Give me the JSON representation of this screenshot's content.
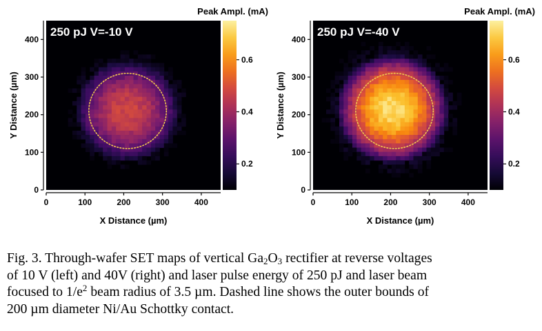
{
  "chart_data": [
    {
      "type": "heatmap",
      "panel": "left",
      "title": "250 pJ V=-10 V",
      "xlabel": "X Distance (µm)",
      "ylabel": "Y Distance (µm)",
      "xlim": [
        0,
        450
      ],
      "ylim": [
        0,
        450
      ],
      "xticks": [
        "0",
        "100",
        "200",
        "300",
        "400"
      ],
      "yticks": [
        "0",
        "100",
        "200",
        "300",
        "400"
      ],
      "grid": false,
      "colorbar": {
        "label": "Peak Ampl. (mA)",
        "range": [
          0.1,
          0.75
        ],
        "ticks": [
          "0.2",
          "0.4",
          "0.6"
        ]
      },
      "spot": {
        "center_um": [
          210,
          210
        ],
        "peak_mA": 0.48,
        "edge_mA": 0.22,
        "radius_um": 135
      },
      "contact_circle": {
        "center_um": [
          210,
          210
        ],
        "diameter_um": 200,
        "style": "dashed"
      },
      "annotation": "Dashed circle: 200 µm diameter Ni/Au Schottky contact"
    },
    {
      "type": "heatmap",
      "panel": "right",
      "title": "250 pJ V=-40 V",
      "xlabel": "X Distance (µm)",
      "ylabel": "Y Distance (µm)",
      "xlim": [
        0,
        450
      ],
      "ylim": [
        0,
        450
      ],
      "xticks": [
        "0",
        "100",
        "200",
        "300",
        "400"
      ],
      "yticks": [
        "0",
        "100",
        "200",
        "300",
        "400"
      ],
      "grid": false,
      "colorbar": {
        "label": "Peak Ampl. (mA)",
        "range": [
          0.1,
          0.75
        ],
        "ticks": [
          "0.2",
          "0.4",
          "0.6"
        ]
      },
      "spot": {
        "center_um": [
          205,
          215
        ],
        "peak_mA": 0.72,
        "edge_mA": 0.25,
        "radius_um": 145
      },
      "contact_circle": {
        "center_um": [
          210,
          210
        ],
        "diameter_um": 200,
        "style": "dashed"
      },
      "annotation": "Dashed circle: 200 µm diameter Ni/Au Schottky contact"
    }
  ],
  "caption": {
    "line1_a": "Fig. 3.  Through-wafer SET maps of vertical Ga",
    "line1_sub1": "2",
    "line1_b": "O",
    "line1_sub2": "3",
    "line1_c": " rectifier at reverse voltages",
    "line2": "of 10 V (left) and 40V (right) and laser pulse energy of 250 pJ and laser beam",
    "line3_a": "focused to 1/e",
    "line3_sup": "2",
    "line3_b": " beam radius of 3.5 µm. Dashed line shows the outer bounds of",
    "line4": "200 µm diameter Ni/Au Schottky contact."
  },
  "colors": {
    "background": "#ffffff",
    "axis": "#000000",
    "contact_circle": "#f2c94c",
    "colormap": [
      "#000004",
      "#1c0c42",
      "#480d6a",
      "#7b1d6d",
      "#ae3257",
      "#dc5039",
      "#f8850f",
      "#fbbf2b",
      "#fcf0a0"
    ]
  }
}
